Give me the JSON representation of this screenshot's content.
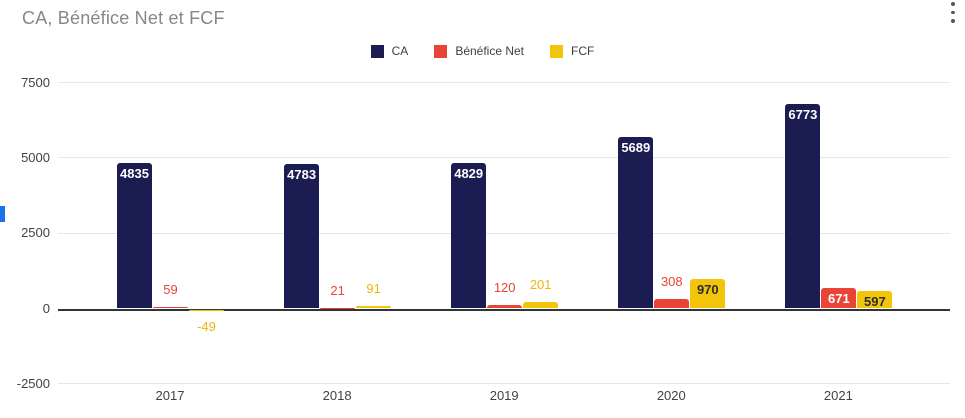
{
  "window": {
    "menu_icon": "more-vertical-icon",
    "left_edge_handle_color": "#1a73e8"
  },
  "chart_data": {
    "type": "bar",
    "title": "CA, Bénéfice Net et FCF",
    "title_color": "#878787",
    "categories": [
      "2017",
      "2018",
      "2019",
      "2020",
      "2021"
    ],
    "series": [
      {
        "name": "CA",
        "color": "#1b1d52",
        "inside_label_color": "#ffffff",
        "outside_label_color": "#1b1d52",
        "values": [
          4835,
          4783,
          4829,
          5689,
          6773
        ]
      },
      {
        "name": "Bénéfice Net",
        "color": "#e94435",
        "inside_label_color": "#ffffff",
        "outside_label_color": "#e94435",
        "values": [
          59,
          21,
          120,
          308,
          671
        ]
      },
      {
        "name": "FCF",
        "color": "#f2c50a",
        "inside_label_color": "#2d2d2d",
        "outside_label_color": "#f0b40a",
        "values": [
          -49,
          91,
          201,
          970,
          597
        ]
      }
    ],
    "y_ticks": [
      7500,
      5000,
      2500,
      0,
      -2500
    ],
    "ylim": [
      -2500,
      7500
    ],
    "grid": true,
    "legend_position": "top-center",
    "value_labels_shown": true,
    "axis_line_color": "#333333",
    "gridline_color": "#e6e6e6"
  }
}
